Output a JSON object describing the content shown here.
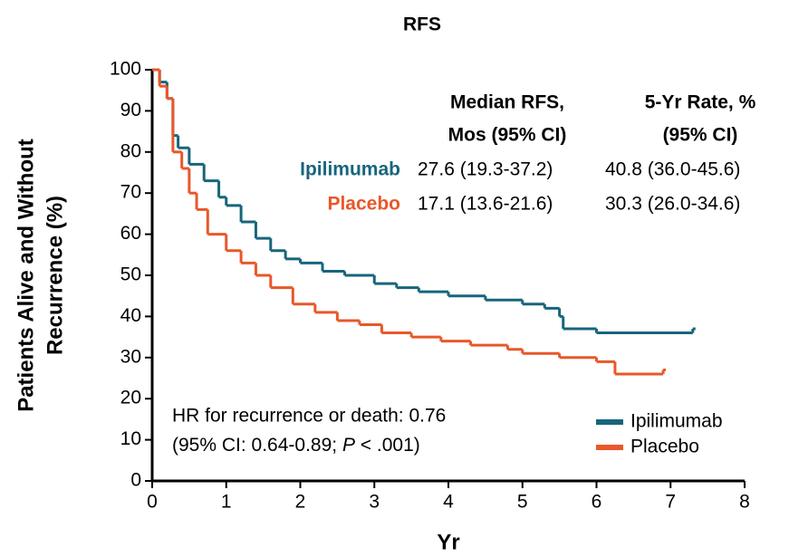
{
  "chart_data": {
    "type": "step",
    "title": "RFS",
    "xlabel": "Yr",
    "ylabel": [
      "Patients Alive and Without",
      "Recurrence (%)"
    ],
    "xlim": [
      0,
      8
    ],
    "xticks": [
      0,
      1,
      2,
      3,
      4,
      5,
      6,
      7,
      8
    ],
    "ylim": [
      0,
      100
    ],
    "yticks": [
      0,
      10,
      20,
      30,
      40,
      50,
      60,
      70,
      80,
      90,
      100
    ],
    "legend": "lower right",
    "series": [
      {
        "name": "Ipilimumab",
        "color": "#17657c",
        "x": [
          0,
          0.1,
          0.2,
          0.28,
          0.35,
          0.5,
          0.7,
          0.9,
          1.0,
          1.2,
          1.4,
          1.6,
          1.8,
          2.0,
          2.3,
          2.6,
          3.0,
          3.3,
          3.6,
          4.0,
          4.5,
          5.0,
          5.3,
          5.5,
          5.55,
          6.0,
          7.3
        ],
        "values": [
          100,
          97,
          93,
          84,
          81,
          77,
          73,
          69,
          67,
          63,
          59,
          56,
          54,
          53,
          51,
          50,
          48,
          47,
          46,
          45,
          44,
          43,
          42,
          40,
          37,
          36,
          37
        ]
      },
      {
        "name": "Placebo",
        "color": "#e8582a",
        "x": [
          0,
          0.1,
          0.2,
          0.28,
          0.4,
          0.5,
          0.6,
          0.75,
          1.0,
          1.2,
          1.4,
          1.6,
          1.9,
          2.2,
          2.5,
          2.8,
          3.1,
          3.5,
          3.9,
          4.3,
          4.8,
          5.0,
          5.5,
          6.0,
          6.25,
          6.9
        ],
        "values": [
          100,
          96,
          93,
          80,
          76,
          70,
          66,
          60,
          56,
          53,
          50,
          47,
          43,
          41,
          39,
          38,
          36,
          35,
          34,
          33,
          32,
          31,
          30,
          29,
          26,
          27
        ]
      }
    ],
    "annotation": {
      "line1": "HR for recurrence or death: 0.76",
      "line2_a": "(95% CI: 0.64-0.89; ",
      "line2_p": "P",
      "line2_b": " < .001)"
    },
    "table": {
      "header": [
        [
          "Median RFS,",
          "Mos (95% CI)"
        ],
        [
          "5-Yr Rate, %",
          "(95% CI)"
        ]
      ],
      "rows": [
        [
          "Ipilimumab",
          "27.6 (19.3-37.2)",
          "40.8 (36.0-45.6)"
        ],
        [
          "Placebo",
          "17.1 (13.6-21.6)",
          "30.3 (26.0-34.6)"
        ]
      ]
    }
  }
}
